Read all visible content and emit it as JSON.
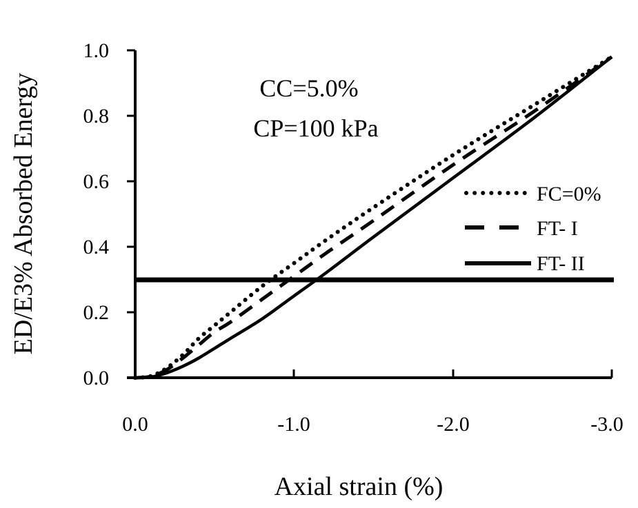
{
  "chart_data": {
    "type": "line",
    "title": "",
    "xlabel": "Axial strain (%)",
    "ylabel": "ED/E3% Absorbed Energy",
    "xlim": [
      0.0,
      -3.0
    ],
    "ylim": [
      0.0,
      1.0
    ],
    "x_ticks": [
      "0.0",
      "-1.0",
      "-2.0",
      "-3.0"
    ],
    "y_ticks": [
      "0.0",
      "0.2",
      "0.4",
      "0.6",
      "0.8",
      "1.0"
    ],
    "grid": false,
    "legend_position": "right-middle",
    "annotations": [
      "CC=5.0%",
      "CP=100 kPa"
    ],
    "reference_line": {
      "y": 0.3,
      "style": "solid-thick",
      "x_range": [
        0.0,
        -3.0
      ]
    },
    "x": [
      0.0,
      -0.1,
      -0.2,
      -0.3,
      -0.4,
      -0.5,
      -0.6,
      -0.8,
      -1.0,
      -1.2,
      -1.5,
      -2.0,
      -2.5,
      -3.0
    ],
    "series": [
      {
        "name": "FC=0%",
        "style": "dotted",
        "values": [
          0.0,
          0.005,
          0.03,
          0.07,
          0.12,
          0.16,
          0.2,
          0.28,
          0.35,
          0.42,
          0.52,
          0.68,
          0.83,
          0.98
        ]
      },
      {
        "name": "FT- I",
        "style": "dashed",
        "values": [
          0.0,
          0.004,
          0.025,
          0.06,
          0.1,
          0.14,
          0.17,
          0.24,
          0.31,
          0.38,
          0.48,
          0.65,
          0.81,
          0.98
        ]
      },
      {
        "name": "FT- II",
        "style": "solid",
        "values": [
          0.0,
          0.002,
          0.015,
          0.035,
          0.06,
          0.09,
          0.12,
          0.18,
          0.25,
          0.32,
          0.43,
          0.61,
          0.79,
          0.98
        ]
      }
    ]
  },
  "annotation": {
    "line1": "CC=5.0%",
    "line2": "CP=100 kPa"
  },
  "axes": {
    "xlabel": "Axial strain (%)",
    "ylabel": "ED/E3% Absorbed Energy",
    "xticks": [
      "0.0",
      "-1.0",
      "-2.0",
      "-3.0"
    ],
    "yticks": [
      "0.0",
      "0.2",
      "0.4",
      "0.6",
      "0.8",
      "1.0"
    ]
  },
  "legend": {
    "items": [
      {
        "label": "FC=0%"
      },
      {
        "label": "FT- I"
      },
      {
        "label": "FT- II"
      }
    ]
  }
}
